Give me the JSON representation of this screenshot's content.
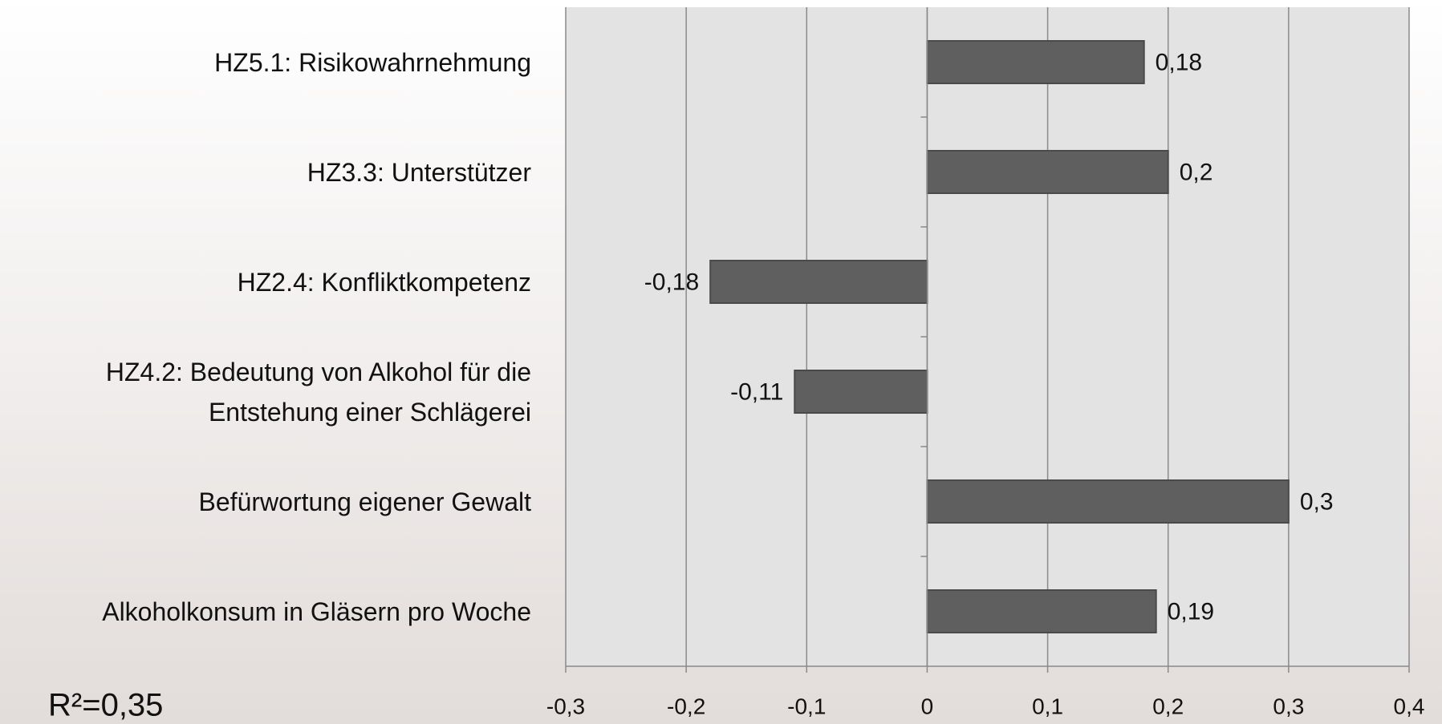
{
  "chart_data": {
    "type": "bar",
    "orientation": "horizontal",
    "categories": [
      "HZ5.1: Risikowahrnehmung",
      "HZ3.3: Unterstützer",
      "HZ2.4: Konfliktkompetenz",
      "HZ4.2: Bedeutung von Alkohol für die Entstehung einer Schlägerei",
      "Befürwortung eigener Gewalt",
      "Alkoholkonsum in Gläsern pro Woche"
    ],
    "values": [
      0.18,
      0.2,
      -0.18,
      -0.11,
      0.3,
      0.19
    ],
    "value_labels": [
      "0,18",
      "0,2",
      "-0,18",
      "-0,11",
      "0,3",
      "0,19"
    ],
    "color": "#5f5f5f",
    "xlim": [
      -0.3,
      0.4
    ],
    "xticks": [
      {
        "value": -0.3,
        "label": "-0,3"
      },
      {
        "value": -0.2,
        "label": "-0,2"
      },
      {
        "value": -0.1,
        "label": "-0,1"
      },
      0,
      {
        "value": 0.1,
        "label": "0,1"
      },
      {
        "value": 0.2,
        "label": "0,2"
      },
      {
        "value": 0.3,
        "label": "0,3"
      },
      {
        "value": 0.4,
        "label": "0,4"
      }
    ],
    "grid": true,
    "annotations": [
      "R²=0,35"
    ]
  }
}
